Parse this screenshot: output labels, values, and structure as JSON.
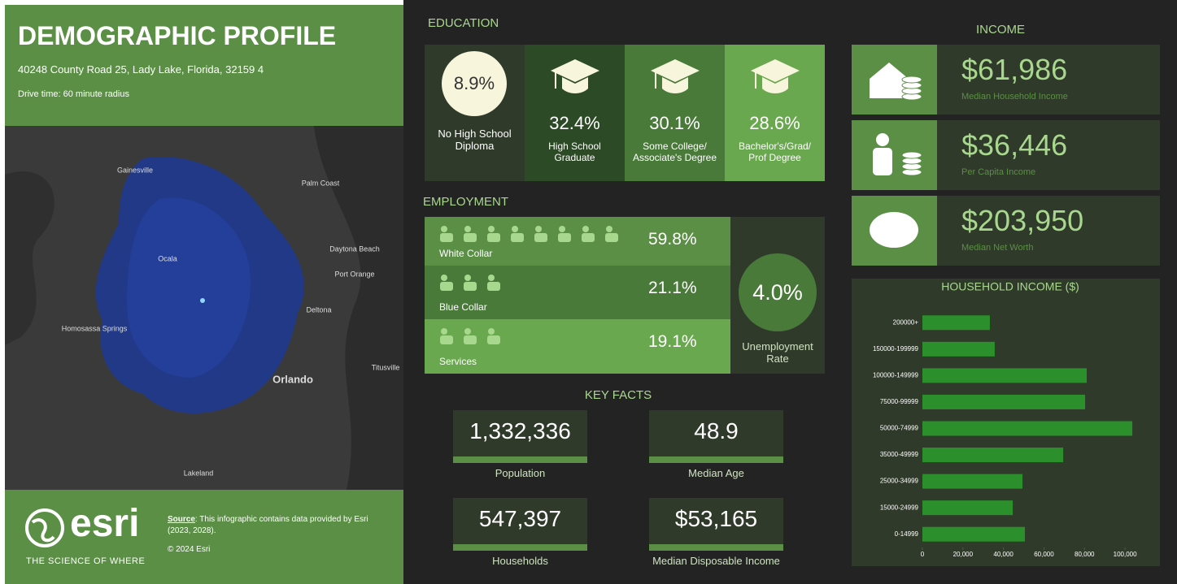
{
  "header": {
    "title": "DEMOGRAPHIC PROFILE",
    "address": "40248 County Road 25, Lady Lake, Florida, 32159 4",
    "drive_time": "Drive time: 60 minute radius"
  },
  "map": {
    "labels": [
      "Gainesville",
      "Palm Coast",
      "Ocala",
      "Daytona Beach",
      "Port Orange",
      "Deltona",
      "Homosassa Springs",
      "Orlando",
      "Titusville",
      "Lakeland"
    ]
  },
  "footer": {
    "logo": "esri",
    "tagline": "THE SCIENCE OF WHERE",
    "source_label": "Source",
    "source_text": ": This infographic contains data provided by Esri (2023, 2028).",
    "copyright": "© 2024 Esri"
  },
  "education": {
    "title": "EDUCATION",
    "items": [
      {
        "value": "8.9%",
        "label": "No High School Diploma"
      },
      {
        "value": "32.4%",
        "label": "High School Graduate"
      },
      {
        "value": "30.1%",
        "label": "Some College/ Associate's Degree"
      },
      {
        "value": "28.6%",
        "label": "Bachelor's/Grad/ Prof Degree"
      }
    ]
  },
  "employment": {
    "title": "EMPLOYMENT",
    "items": [
      {
        "value": "59.8%",
        "label": "White Collar"
      },
      {
        "value": "21.1%",
        "label": "Blue Collar"
      },
      {
        "value": "19.1%",
        "label": "Services"
      }
    ],
    "unemployment": {
      "value": "4.0%",
      "label": "Unemployment Rate"
    }
  },
  "key_facts": {
    "title": "KEY FACTS",
    "items": [
      {
        "value": "1,332,336",
        "label": "Population"
      },
      {
        "value": "48.9",
        "label": "Median Age"
      },
      {
        "value": "547,397",
        "label": "Households"
      },
      {
        "value": "$53,165",
        "label": "Median Disposable Income"
      }
    ]
  },
  "income": {
    "title": "INCOME",
    "items": [
      {
        "value": "$61,986",
        "label": "Median Household Income"
      },
      {
        "value": "$36,446",
        "label": "Per Capita Income"
      },
      {
        "value": "$203,950",
        "label": "Median Net Worth"
      }
    ]
  },
  "chart_data": {
    "type": "bar",
    "orientation": "horizontal",
    "title": "HOUSEHOLD INCOME ($)",
    "color": "#2b8f2b",
    "categories": [
      "200000+",
      "150000-199999",
      "100000-149999",
      "75000-99999",
      "50000-74999",
      "35000-49999",
      "25000-34999",
      "15000-24999",
      "0-14999"
    ],
    "values": [
      33300,
      35700,
      81100,
      80300,
      103600,
      69500,
      49400,
      44600,
      50600
    ],
    "xlim": [
      0,
      110000
    ],
    "xticks": [
      0,
      {
        "value": 20000,
        "label": "20,000"
      },
      {
        "value": 40000,
        "label": "40,000"
      },
      {
        "value": 60000,
        "label": "60,000"
      },
      {
        "value": 80000,
        "label": "80,000"
      },
      {
        "value": 100000,
        "label": "100,000"
      }
    ]
  }
}
